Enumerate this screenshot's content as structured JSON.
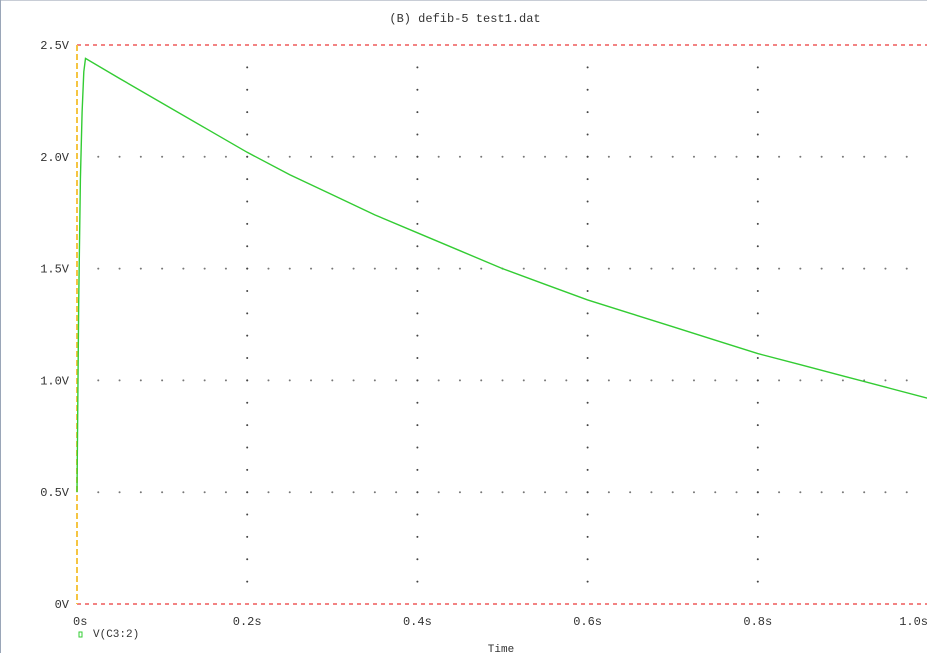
{
  "chart_data": {
    "type": "line",
    "title": "(B) defib-5 test1.dat",
    "xlabel": "Time",
    "ylabel": "",
    "xlim": [
      0,
      1.0
    ],
    "ylim": [
      0,
      2.5
    ],
    "x_ticks": [
      0,
      0.2,
      0.4,
      0.6,
      0.8,
      1.0
    ],
    "x_tick_labels": [
      "0s",
      "0.2s",
      "0.4s",
      "0.6s",
      "0.8s",
      "1.0s"
    ],
    "y_ticks": [
      0,
      0.5,
      1.0,
      1.5,
      2.0,
      2.5
    ],
    "y_tick_labels": [
      "0V",
      "0.5V",
      "1.0V",
      "1.5V",
      "2.0V",
      "2.5V"
    ],
    "grid": true,
    "legend_position": "bottom-left",
    "series": [
      {
        "name": "V(C3:2)",
        "color": "#33cc33",
        "x": [
          0,
          0.002,
          0.004,
          0.006,
          0.008,
          0.01,
          0.05,
          0.1,
          0.15,
          0.2,
          0.25,
          0.3,
          0.35,
          0.4,
          0.45,
          0.5,
          0.55,
          0.6,
          0.65,
          0.7,
          0.75,
          0.8,
          0.85,
          0.9,
          0.95,
          1.0
        ],
        "y": [
          0.5,
          1.35,
          1.9,
          2.2,
          2.38,
          2.44,
          2.35,
          2.24,
          2.13,
          2.02,
          1.92,
          1.83,
          1.74,
          1.66,
          1.58,
          1.5,
          1.43,
          1.36,
          1.3,
          1.24,
          1.18,
          1.12,
          1.07,
          1.02,
          0.97,
          0.92
        ]
      }
    ]
  }
}
